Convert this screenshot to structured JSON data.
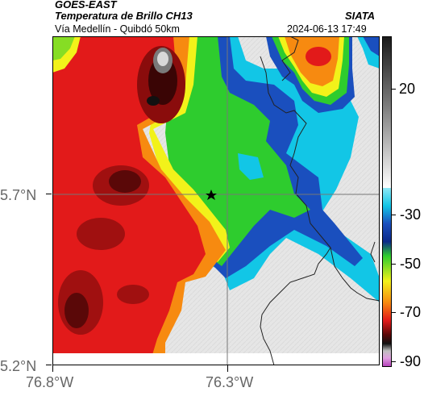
{
  "header": {
    "source": "GOES-EAST",
    "product": "Temperatura de Brillo CH13",
    "organization": "SIATA",
    "route": "Vía Medellín - Quibdó 50km",
    "datetime": "2024-06-13 17:49"
  },
  "axes": {
    "lat_ticks": [
      "5.7°N",
      "5.2°N"
    ],
    "lon_ticks": [
      "76.8°W",
      "76.3°W"
    ]
  },
  "colorbar": {
    "tick_labels": [
      "20",
      "-30",
      "-50",
      "-70",
      "-90"
    ],
    "colors": {
      "warm_white": "#d9d9d9",
      "cyan": "#12c6e6",
      "blue": "#1a4fbe",
      "green": "#2ecc2e",
      "yellow": "#f2f21a",
      "orange": "#f78a10",
      "red": "#e21a1a",
      "dark_red": "#5a0808",
      "gray_top": "#202020",
      "magenta": "#b23ab8"
    }
  },
  "map": {
    "marker_icon": "star-icon",
    "crosshair": true
  }
}
